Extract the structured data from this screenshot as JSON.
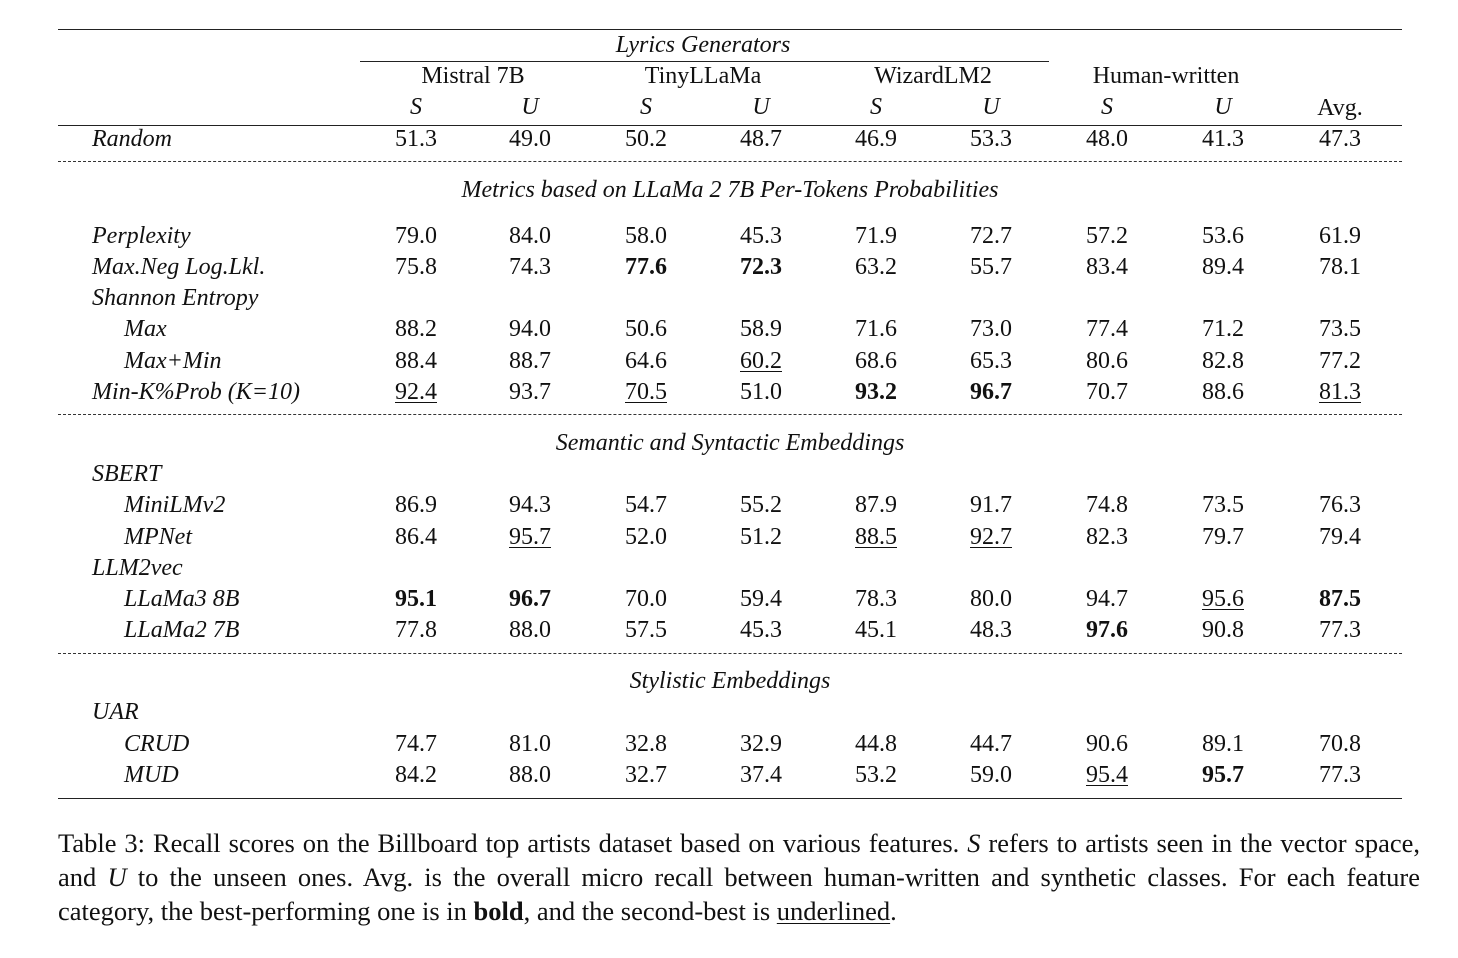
{
  "table": {
    "header": {
      "group_label": "Lyrics Generators",
      "models": [
        "Mistral 7B",
        "TinyLLaMa",
        "WizardLM2"
      ],
      "human_label": "Human-written",
      "sub": [
        "S",
        "U",
        "S",
        "U",
        "S",
        "U",
        "S",
        "U"
      ],
      "avg_label": "Avg."
    },
    "random": {
      "label": "Random",
      "values": [
        "51.3",
        "49.0",
        "50.2",
        "48.7",
        "46.9",
        "53.3",
        "48.0",
        "41.3",
        "47.3"
      ],
      "styles": [
        "",
        "",
        "",
        "",
        "",
        "",
        "",
        "",
        ""
      ]
    },
    "sections": [
      {
        "title": "Metrics based on LLaMa 2 7B Per-Tokens Probabilities",
        "rows": [
          {
            "label": "Perplexity",
            "indent": false,
            "values": [
              "79.0",
              "84.0",
              "58.0",
              "45.3",
              "71.9",
              "72.7",
              "57.2",
              "53.6",
              "61.9"
            ],
            "styles": [
              "",
              "",
              "",
              "",
              "",
              "",
              "",
              "",
              ""
            ]
          },
          {
            "label": "Max.Neg Log.Lkl.",
            "indent": false,
            "values": [
              "75.8",
              "74.3",
              "77.6",
              "72.3",
              "63.2",
              "55.7",
              "83.4",
              "89.4",
              "78.1"
            ],
            "styles": [
              "",
              "",
              "b",
              "b",
              "",
              "",
              "",
              "",
              ""
            ]
          },
          {
            "label": "Shannon Entropy",
            "indent": false,
            "values": [],
            "styles": []
          },
          {
            "label": "Max",
            "indent": true,
            "values": [
              "88.2",
              "94.0",
              "50.6",
              "58.9",
              "71.6",
              "73.0",
              "77.4",
              "71.2",
              "73.5"
            ],
            "styles": [
              "",
              "",
              "",
              "",
              "",
              "",
              "",
              "",
              ""
            ]
          },
          {
            "label": "Max+Min",
            "indent": true,
            "values": [
              "88.4",
              "88.7",
              "64.6",
              "60.2",
              "68.6",
              "65.3",
              "80.6",
              "82.8",
              "77.2"
            ],
            "styles": [
              "",
              "",
              "",
              "u",
              "",
              "",
              "",
              "",
              ""
            ]
          },
          {
            "label": "Min-K%Prob (K=10)",
            "indent": false,
            "values": [
              "92.4",
              "93.7",
              "70.5",
              "51.0",
              "93.2",
              "96.7",
              "70.7",
              "88.6",
              "81.3"
            ],
            "styles": [
              "u",
              "",
              "u",
              "",
              "b",
              "b",
              "",
              "",
              "u"
            ]
          }
        ]
      },
      {
        "title": "Semantic and Syntactic Embeddings",
        "rows": [
          {
            "label": "SBERT",
            "indent": false,
            "values": [],
            "styles": []
          },
          {
            "label": "MiniLMv2",
            "indent": true,
            "values": [
              "86.9",
              "94.3",
              "54.7",
              "55.2",
              "87.9",
              "91.7",
              "74.8",
              "73.5",
              "76.3"
            ],
            "styles": [
              "",
              "",
              "",
              "",
              "",
              "",
              "",
              "",
              ""
            ]
          },
          {
            "label": "MPNet",
            "indent": true,
            "values": [
              "86.4",
              "95.7",
              "52.0",
              "51.2",
              "88.5",
              "92.7",
              "82.3",
              "79.7",
              "79.4"
            ],
            "styles": [
              "",
              "u",
              "",
              "",
              "u",
              "u",
              "",
              "",
              ""
            ]
          },
          {
            "label": "LLM2vec",
            "indent": false,
            "values": [],
            "styles": []
          },
          {
            "label": "LLaMa3 8B",
            "indent": true,
            "values": [
              "95.1",
              "96.7",
              "70.0",
              "59.4",
              "78.3",
              "80.0",
              "94.7",
              "95.6",
              "87.5"
            ],
            "styles": [
              "b",
              "b",
              "",
              "",
              "",
              "",
              "",
              "u",
              "b"
            ]
          },
          {
            "label": "LLaMa2 7B",
            "indent": true,
            "values": [
              "77.8",
              "88.0",
              "57.5",
              "45.3",
              "45.1",
              "48.3",
              "97.6",
              "90.8",
              "77.3"
            ],
            "styles": [
              "",
              "",
              "",
              "",
              "",
              "",
              "b",
              "",
              ""
            ]
          }
        ]
      },
      {
        "title": "Stylistic Embeddings",
        "rows": [
          {
            "label": "UAR",
            "indent": false,
            "values": [],
            "styles": []
          },
          {
            "label": "CRUD",
            "indent": true,
            "values": [
              "74.7",
              "81.0",
              "32.8",
              "32.9",
              "44.8",
              "44.7",
              "90.6",
              "89.1",
              "70.8"
            ],
            "styles": [
              "",
              "",
              "",
              "",
              "",
              "",
              "",
              "",
              ""
            ]
          },
          {
            "label": "MUD",
            "indent": true,
            "values": [
              "84.2",
              "88.0",
              "32.7",
              "37.4",
              "53.2",
              "59.0",
              "95.4",
              "95.7",
              "77.3"
            ],
            "styles": [
              "",
              "",
              "",
              "",
              "",
              "",
              "u",
              "b",
              ""
            ]
          }
        ]
      }
    ]
  },
  "caption": {
    "t1": "Table 3: Recall scores on the Billboard top artists dataset based on various features. ",
    "s": "S",
    "t2": " refers to artists seen in the vector space, and ",
    "u": "U",
    "t3": " to the unseen ones. Avg. is the overall micro recall between human-written and synthetic classes. For each feature category, the best-performing one is in ",
    "bold": "bold",
    "t4": ", and the second-best is ",
    "underlined": "underlined",
    "t5": "."
  }
}
